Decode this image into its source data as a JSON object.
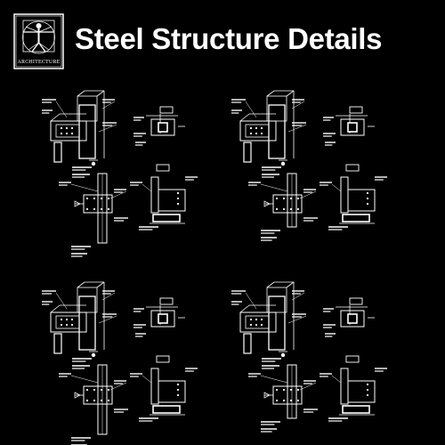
{
  "header": {
    "title": "Steel Structure Details"
  },
  "logo": {
    "label": "ARCHITECTURE",
    "icon": "vitruvian-man-icon"
  },
  "colors": {
    "background": "#000000",
    "lines": "#ffffff"
  },
  "panels": [
    {
      "name": "detail-panel-top-left"
    },
    {
      "name": "detail-panel-top-right"
    },
    {
      "name": "detail-panel-bottom-left"
    },
    {
      "name": "detail-panel-bottom-right"
    }
  ]
}
